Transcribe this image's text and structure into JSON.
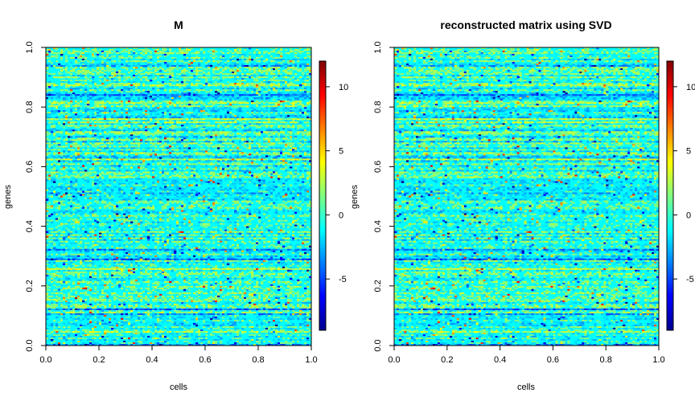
{
  "chart_data": [
    {
      "type": "heatmap",
      "title": "M",
      "xlabel": "cells",
      "ylabel": "genes",
      "xlim": [
        0,
        1
      ],
      "ylim": [
        0,
        1
      ],
      "x_ticks": [
        "0.0",
        "0.2",
        "0.4",
        "0.6",
        "0.8",
        "1.0"
      ],
      "y_ticks": [
        "0.0",
        "0.2",
        "0.4",
        "0.6",
        "0.8",
        "1.0"
      ],
      "colorbar": {
        "range": [
          -9,
          12
        ],
        "ticks": [
          "-5",
          "0",
          "5",
          "10"
        ],
        "palette": [
          "#00008F",
          "#0000FF",
          "#0080FF",
          "#00FFFF",
          "#80FF80",
          "#FFFF00",
          "#FF8000",
          "#FF0000",
          "#800000"
        ]
      },
      "grid": false,
      "dominant_value": 0,
      "dominant_color": "#00FFFF"
    },
    {
      "type": "heatmap",
      "title": "reconstructed matrix using SVD",
      "xlabel": "cells",
      "ylabel": "genes",
      "xlim": [
        0,
        1
      ],
      "ylim": [
        0,
        1
      ],
      "x_ticks": [
        "0.0",
        "0.2",
        "0.4",
        "0.6",
        "0.8",
        "1.0"
      ],
      "y_ticks": [
        "0.0",
        "0.2",
        "0.4",
        "0.6",
        "0.8",
        "1.0"
      ],
      "colorbar": {
        "range": [
          -9,
          12
        ],
        "ticks": [
          "-5",
          "0",
          "5",
          "10"
        ],
        "palette": [
          "#00008F",
          "#0000FF",
          "#0080FF",
          "#00FFFF",
          "#80FF80",
          "#FFFF00",
          "#FF8000",
          "#FF0000",
          "#800000"
        ]
      },
      "grid": false,
      "dominant_value": 0,
      "dominant_color": "#00FFFF"
    }
  ]
}
